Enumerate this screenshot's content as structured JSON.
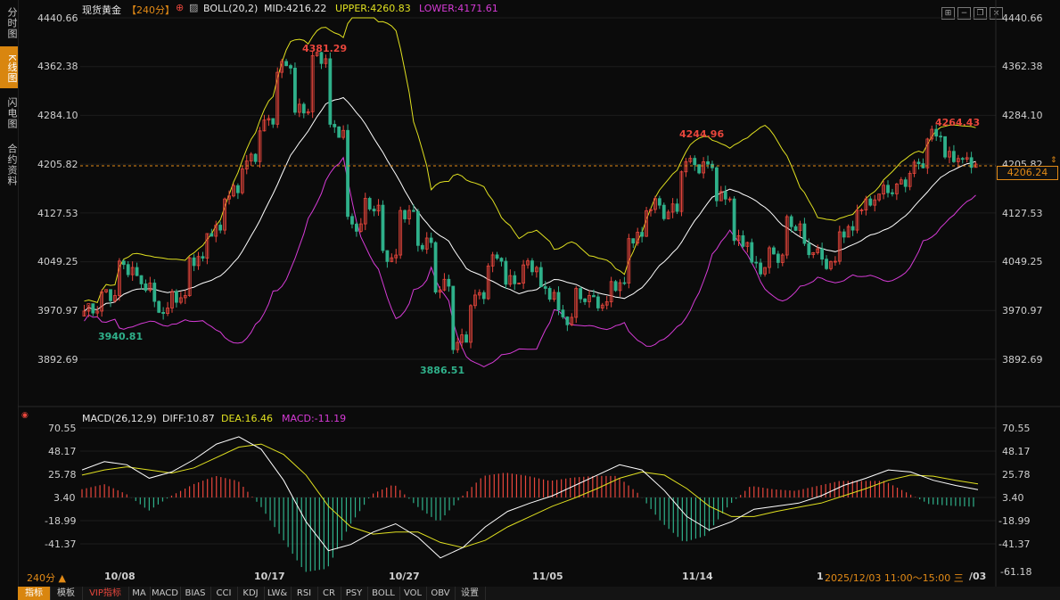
{
  "sidebar": {
    "tabs": [
      {
        "label": "分时图",
        "active": false
      },
      {
        "label": "K线图",
        "active": true
      },
      {
        "label": "闪电图",
        "active": false
      },
      {
        "label": "合约资料",
        "active": false
      }
    ]
  },
  "header": {
    "symbol": "现货黄金",
    "period": "【240分】",
    "period_icon": "plus-circle-icon",
    "indicator_icon": "chart-settings-icon",
    "boll_label": "BOLL(20,2)",
    "mid_label": "MID:4216.22",
    "upper_label": "UPPER:4260.83",
    "lower_label": "LOWER:4171.61"
  },
  "top_right_icons": [
    "grid-icon",
    "minimize-icon",
    "restore-icon",
    "close-icon"
  ],
  "price_axis": {
    "ticks": [
      "4440.66",
      "4362.38",
      "4284.10",
      "4205.82",
      "4127.53",
      "4049.25",
      "3970.97",
      "3892.69"
    ],
    "current_price": "4206.24"
  },
  "price_annotations": {
    "high_1": "4381.29",
    "high_2": "4244.96",
    "high_3": "4264.43",
    "low_1": "3940.81",
    "low_2": "3886.51"
  },
  "macd": {
    "label": "MACD(26,12,9)",
    "diff_label": "DIFF:10.87",
    "dea_label": "DEA:16.46",
    "macd_label": "MACD:-11.19",
    "ticks": [
      "70.55",
      "48.17",
      "25.78",
      "3.40",
      "-18.99",
      "-41.37"
    ],
    "cursor_value": "-61.18"
  },
  "time_axis": {
    "labels": [
      "10/08",
      "10/17",
      "10/27",
      "11/05",
      "11/14"
    ],
    "period_selector": "240分 ▲",
    "cursor_time": "2025/12/03 11:00～15:00 三",
    "cursor_prefix": "1",
    "cursor_suffix": "/03"
  },
  "bottom_tabs": [
    "指标",
    "模板",
    "VIP指标",
    "MA",
    "MACD",
    "BIAS",
    "CCI",
    "KDJ",
    "LW&",
    "RSI",
    "CR",
    "PSY",
    "BOLL",
    "VOL",
    "OBV",
    "设置"
  ],
  "colors": {
    "up": "#e8463c",
    "down": "#2fb08a",
    "mid": "#ffffff",
    "upper": "#e0e020",
    "lower": "#d63bd6",
    "accent": "#d9860f",
    "dea": "#e0e020",
    "diff": "#ffffff"
  },
  "chart_data": {
    "type": "candlestick",
    "y_range": [
      3892.69,
      4440.66
    ],
    "candles_ohlc_sample": [
      [
        3962,
        3975,
        3944,
        3970
      ],
      [
        3970,
        4000,
        3960,
        3995
      ],
      [
        3995,
        4050,
        3990,
        4040
      ],
      [
        4040,
        4055,
        4005,
        4015
      ],
      [
        4015,
        4020,
        3960,
        3975
      ],
      [
        3975,
        4005,
        3955,
        3995
      ],
      [
        3995,
        4060,
        3990,
        4055
      ],
      [
        4055,
        4110,
        4045,
        4100
      ],
      [
        4100,
        4170,
        4095,
        4160
      ],
      [
        4160,
        4220,
        4150,
        4210
      ],
      [
        4210,
        4280,
        4200,
        4270
      ],
      [
        4270,
        4370,
        4240,
        4360
      ],
      [
        4360,
        4368,
        4270,
        4290
      ],
      [
        4290,
        4382,
        4280,
        4375
      ],
      [
        4375,
        4381,
        4250,
        4260
      ],
      [
        4260,
        4270,
        4080,
        4110
      ],
      [
        4110,
        4160,
        4060,
        4140
      ],
      [
        4140,
        4150,
        4030,
        4060
      ],
      [
        4060,
        4140,
        4040,
        4130
      ],
      [
        4130,
        4140,
        4050,
        4080
      ],
      [
        4080,
        4090,
        3990,
        4010
      ],
      [
        4010,
        4030,
        3890,
        3920
      ],
      [
        3920,
        4000,
        3887,
        3990
      ],
      [
        3990,
        4060,
        3980,
        4050
      ],
      [
        4050,
        4055,
        4000,
        4015
      ],
      [
        4015,
        4050,
        3995,
        4040
      ],
      [
        4040,
        4045,
        3990,
        4000
      ],
      [
        4000,
        4010,
        3940,
        3960
      ],
      [
        3960,
        4005,
        3950,
        3995
      ],
      [
        3995,
        4010,
        3975,
        3985
      ],
      [
        3985,
        4020,
        3980,
        4015
      ],
      [
        4015,
        4100,
        4010,
        4090
      ],
      [
        4090,
        4150,
        4080,
        4140
      ],
      [
        4140,
        4160,
        4120,
        4130
      ],
      [
        4130,
        4215,
        4125,
        4205
      ],
      [
        4205,
        4245,
        4180,
        4200
      ],
      [
        4200,
        4210,
        4140,
        4150
      ],
      [
        4150,
        4160,
        4060,
        4080
      ],
      [
        4080,
        4100,
        4030,
        4040
      ],
      [
        4040,
        4070,
        4010,
        4060
      ],
      [
        4060,
        4120,
        4050,
        4110
      ],
      [
        4110,
        4115,
        4060,
        4070
      ],
      [
        4070,
        4080,
        4040,
        4050
      ],
      [
        4050,
        4110,
        4045,
        4100
      ],
      [
        4100,
        4150,
        4090,
        4140
      ],
      [
        4140,
        4175,
        4130,
        4160
      ],
      [
        4160,
        4180,
        4140,
        4170
      ],
      [
        4170,
        4210,
        4160,
        4200
      ],
      [
        4200,
        4264,
        4190,
        4250
      ],
      [
        4250,
        4260,
        4200,
        4215
      ],
      [
        4215,
        4230,
        4185,
        4206
      ]
    ],
    "macd_diff": [
      30,
      38,
      35,
      22,
      28,
      40,
      55,
      62,
      50,
      20,
      -20,
      -48,
      -42,
      -30,
      -22,
      -35,
      -55,
      -45,
      -25,
      -10,
      -2,
      5,
      15,
      25,
      35,
      30,
      10,
      -15,
      -28,
      -20,
      -8,
      -5,
      -2,
      5,
      15,
      22,
      30,
      28,
      20,
      15,
      10.87
    ],
    "macd_dea": [
      25,
      30,
      33,
      30,
      27,
      32,
      42,
      52,
      55,
      45,
      25,
      -5,
      -25,
      -32,
      -30,
      -30,
      -40,
      -45,
      -38,
      -25,
      -15,
      -5,
      3,
      12,
      22,
      28,
      25,
      12,
      -5,
      -15,
      -15,
      -10,
      -6,
      -2,
      5,
      12,
      20,
      25,
      24,
      20,
      16.46
    ]
  }
}
